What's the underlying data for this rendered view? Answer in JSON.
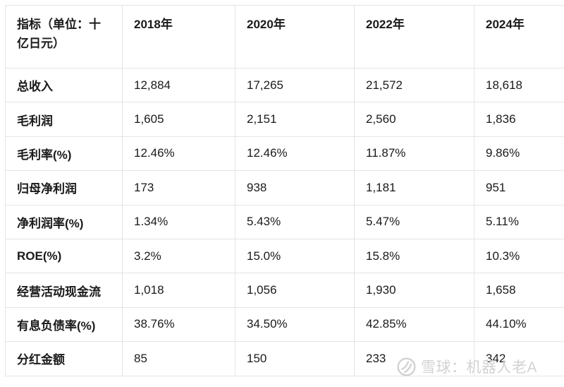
{
  "table": {
    "header": {
      "indicator_label": "指标（单位：十\n亿日元）",
      "years": [
        "2018年",
        "2020年",
        "2022年",
        "2024年"
      ]
    },
    "rows": [
      {
        "label": "总收入",
        "values": [
          "12,884",
          "17,265",
          "21,572",
          "18,618"
        ]
      },
      {
        "label": "毛利润",
        "values": [
          "1,605",
          "2,151",
          "2,560",
          "1,836"
        ]
      },
      {
        "label": "毛利率(%)",
        "values": [
          "12.46%",
          "12.46%",
          "11.87%",
          "9.86%"
        ]
      },
      {
        "label": "归母净利润",
        "values": [
          "173",
          "938",
          "1,181",
          "951"
        ]
      },
      {
        "label": "净利润率(%)",
        "values": [
          "1.34%",
          "5.43%",
          "5.47%",
          "5.11%"
        ]
      },
      {
        "label": "ROE(%)",
        "values": [
          "3.2%",
          "15.0%",
          "15.8%",
          "10.3%"
        ]
      },
      {
        "label": "经营活动现金流",
        "values": [
          "1,018",
          "1,056",
          "1,930",
          "1,658"
        ]
      },
      {
        "label": "有息负债率(%)",
        "values": [
          "38.76%",
          "34.50%",
          "42.85%",
          "44.10%"
        ]
      },
      {
        "label": "分红金额",
        "values": [
          "85",
          "150",
          "233",
          "342"
        ]
      }
    ]
  },
  "chart_data": {
    "type": "table",
    "title": "",
    "unit_note": "指标（单位：十亿日元）",
    "categories": [
      "2018年",
      "2020年",
      "2022年",
      "2024年"
    ],
    "series": [
      {
        "name": "总收入",
        "values": [
          12884,
          17265,
          21572,
          18618
        ]
      },
      {
        "name": "毛利润",
        "values": [
          1605,
          2151,
          2560,
          1836
        ]
      },
      {
        "name": "毛利率(%)",
        "values": [
          12.46,
          12.46,
          11.87,
          9.86
        ]
      },
      {
        "name": "归母净利润",
        "values": [
          173,
          938,
          1181,
          951
        ]
      },
      {
        "name": "净利润率(%)",
        "values": [
          1.34,
          5.43,
          5.47,
          5.11
        ]
      },
      {
        "name": "ROE(%)",
        "values": [
          3.2,
          15.0,
          15.8,
          10.3
        ]
      },
      {
        "name": "经营活动现金流",
        "values": [
          1018,
          1056,
          1930,
          1658
        ]
      },
      {
        "name": "有息负债率(%)",
        "values": [
          38.76,
          34.5,
          42.85,
          44.1
        ]
      },
      {
        "name": "分红金额",
        "values": [
          85,
          150,
          233,
          342
        ]
      }
    ],
    "layout": {
      "grid": true,
      "header_row_bold": true,
      "first_column_bold": true
    }
  },
  "watermark": {
    "text": "雪球：机器人老A",
    "logo": "xueqiu-logo"
  },
  "colors": {
    "background": "#ffffff",
    "border": "#e5e5e5",
    "text": "#1a1a1a",
    "watermark": "#d2d2d2"
  }
}
